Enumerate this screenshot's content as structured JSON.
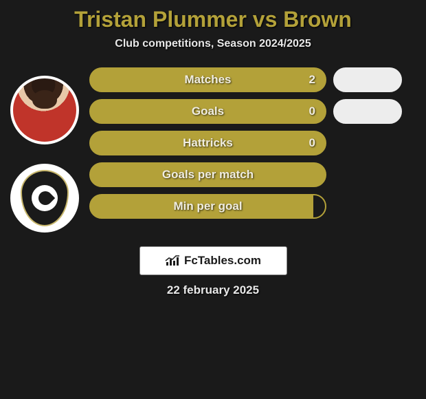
{
  "title": "Tristan Plummer vs Brown",
  "subtitle": "Club competitions, Season 2024/2025",
  "title_color": "#b3a139",
  "subtitle_color": "#e8e8e8",
  "background_color": "#1a1a1a",
  "border_color": "#b3a139",
  "fill_color": "#b3a139",
  "side_fill_color": "#ededed",
  "label_color": "#f0ede0",
  "title_fontsize": 32,
  "subtitle_fontsize": 16,
  "label_fontsize": 17,
  "pill_height": 36,
  "pill_border_radius": 18,
  "stats": [
    {
      "label": "Matches",
      "value": "2",
      "main_fill": 1.0,
      "has_side": true,
      "side_fill": 1.0
    },
    {
      "label": "Goals",
      "value": "0",
      "main_fill": 1.0,
      "has_side": true,
      "side_fill": 1.0
    },
    {
      "label": "Hattricks",
      "value": "0",
      "main_fill": 1.0,
      "has_side": false
    },
    {
      "label": "Goals per match",
      "value": "",
      "main_fill": 1.0,
      "has_side": false
    },
    {
      "label": "Min per goal",
      "value": "",
      "main_fill": 0.95,
      "has_side": false
    }
  ],
  "footer_brand": "FcTables.com",
  "footer_bg": "#ffffff",
  "footer_text_color": "#1a1a1a",
  "date": "22 february 2025",
  "player1_name": "Tristan Plummer",
  "player2_name": "Brown"
}
